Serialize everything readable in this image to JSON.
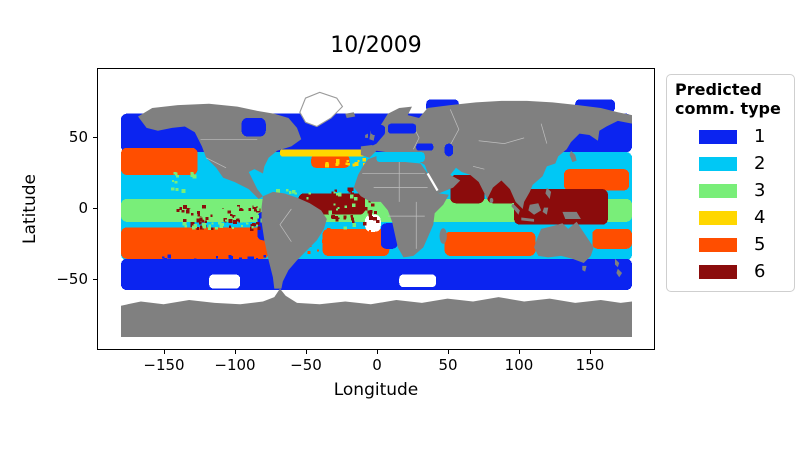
{
  "title": "10/2009",
  "axes": {
    "xlabel": "Longitude",
    "ylabel": "Latitude",
    "x_tick_labels": [
      "−150",
      "−100",
      "−50",
      "0",
      "50",
      "100",
      "150"
    ],
    "y_tick_labels": [
      "50",
      "0",
      "−50"
    ]
  },
  "legend": {
    "title_line1": "Predicted",
    "title_line2": "comm. type",
    "entries": [
      {
        "label": "1",
        "color": "#0b24f0"
      },
      {
        "label": "2",
        "color": "#00c8f5"
      },
      {
        "label": "3",
        "color": "#79ee79"
      },
      {
        "label": "4",
        "color": "#ffd700"
      },
      {
        "label": "5",
        "color": "#ff4e00"
      },
      {
        "label": "6",
        "color": "#8b0c0c"
      }
    ]
  },
  "map_colors": {
    "land": "#808080",
    "country_border": "#bfbfbf",
    "no_data": "#ffffff"
  },
  "chart_data": {
    "type": "heatmap",
    "title": "10/2009",
    "xlabel": "Longitude",
    "ylabel": "Latitude",
    "xlim": [
      -180,
      180
    ],
    "ylim": [
      -90,
      90
    ],
    "x_ticks": [
      -150,
      -100,
      -50,
      0,
      50,
      100,
      150
    ],
    "y_ticks": [
      50,
      0,
      -50
    ],
    "legend_title": "Predicted comm. type",
    "classes": [
      1,
      2,
      3,
      4,
      5,
      6
    ],
    "class_colors": {
      "1": "#0b24f0",
      "2": "#00c8f5",
      "3": "#79ee79",
      "4": "#ffd700",
      "5": "#ff4e00",
      "6": "#8b0c0c"
    },
    "zones": [
      {
        "class": 2,
        "lon": [
          -180,
          180
        ],
        "lat": [
          -36,
          40
        ]
      },
      {
        "class": 3,
        "lon": [
          -180,
          180
        ],
        "lat": [
          -9,
          7
        ]
      },
      {
        "class": 1,
        "lon": [
          -180,
          180
        ],
        "lat": [
          40,
          67
        ]
      },
      {
        "class": 1,
        "lon": [
          -180,
          180
        ],
        "lat": [
          -57,
          -35
        ]
      },
      {
        "class": 5,
        "lon": [
          -180,
          -126
        ],
        "lat": [
          24,
          43
        ]
      },
      {
        "class": 5,
        "lon": [
          132,
          178
        ],
        "lat": [
          13,
          28
        ]
      },
      {
        "class": 5,
        "lon": [
          -46,
          -19
        ],
        "lat": [
          29,
          38
        ]
      },
      {
        "class": 5,
        "lon": [
          -180,
          -76
        ],
        "lat": [
          -35,
          -13
        ]
      },
      {
        "class": 5,
        "lon": [
          -38,
          9
        ],
        "lat": [
          -33,
          -14
        ]
      },
      {
        "class": 5,
        "lon": [
          48,
          112
        ],
        "lat": [
          -33,
          -16
        ]
      },
      {
        "class": 5,
        "lon": [
          152,
          180
        ],
        "lat": [
          -28,
          -14
        ]
      },
      {
        "class": 4,
        "lon": [
          -68,
          -8
        ],
        "lat": [
          37,
          42
        ]
      },
      {
        "class": 6,
        "lon": [
          -55,
          -8
        ],
        "lat": [
          -4,
          11
        ]
      },
      {
        "class": 6,
        "lon": [
          52,
          76
        ],
        "lat": [
          4,
          24
        ]
      },
      {
        "class": 6,
        "lon": [
          78,
          99
        ],
        "lat": [
          4,
          21
        ]
      },
      {
        "class": 6,
        "lon": [
          97,
          163
        ],
        "lat": [
          -11,
          14
        ]
      },
      {
        "class": 1,
        "lon": [
          -180,
          -158
        ],
        "lat": [
          52,
          66
        ]
      },
      {
        "class": 1,
        "lon": [
          162,
          180
        ],
        "lat": [
          52,
          66
        ]
      },
      {
        "class": 1,
        "lon": [
          138,
          158
        ],
        "lat": [
          45,
          60
        ]
      },
      {
        "class": 1,
        "lon": [
          3,
          15
        ],
        "lat": [
          -28,
          -10
        ]
      },
      {
        "class": 1,
        "lon": [
          -84,
          -74
        ],
        "lat": [
          -22,
          -2
        ]
      },
      {
        "class": 1,
        "lon": [
          35,
          58
        ],
        "lat": [
          68,
          77
        ]
      },
      {
        "class": 1,
        "lon": [
          140,
          168
        ],
        "lat": [
          68,
          77
        ]
      },
      {
        "class": 1,
        "lon": [
          -60,
          -45
        ],
        "lat": [
          55,
          63
        ]
      },
      {
        "class": 0,
        "lon": [
          -118,
          -96
        ],
        "lat": [
          -56,
          -46
        ]
      },
      {
        "class": 0,
        "lon": [
          16,
          42
        ],
        "lat": [
          -55,
          -46
        ]
      },
      {
        "class": 0,
        "lon": [
          -8,
          3
        ],
        "lat": [
          -16,
          -4
        ]
      },
      {
        "class": 1,
        "lon": [
          -95,
          -78
        ],
        "lat": [
          51,
          64
        ],
        "over": true
      },
      {
        "class": 1,
        "lon": [
          8,
          28
        ],
        "lat": [
          53,
          60
        ],
        "over": true
      },
      {
        "class": 1,
        "lon": [
          -4,
          6
        ],
        "lat": [
          52,
          59
        ],
        "over": true
      },
      {
        "class": 1,
        "lon": [
          28,
          40
        ],
        "lat": [
          41,
          46
        ],
        "over": true
      },
      {
        "class": 1,
        "lon": [
          48,
          54
        ],
        "lat": [
          37,
          46
        ],
        "over": true
      },
      {
        "class": 2,
        "lon": [
          0,
          34
        ],
        "lat": [
          33,
          40
        ],
        "over": true
      }
    ],
    "speckles": [
      {
        "class": 6,
        "lon": [
          -178,
          -122
        ],
        "lat": [
          -8,
          14
        ],
        "n": 70
      },
      {
        "class": 6,
        "lon": [
          -122,
          -82
        ],
        "lat": [
          -6,
          8
        ],
        "n": 28
      },
      {
        "class": 6,
        "lon": [
          38,
          98
        ],
        "lat": [
          -13,
          3
        ],
        "n": 55
      },
      {
        "class": 6,
        "lon": [
          148,
          180
        ],
        "lat": [
          -10,
          16
        ],
        "n": 45
      },
      {
        "class": 6,
        "lon": [
          -60,
          -30
        ],
        "lat": [
          -2,
          10
        ],
        "n": 18
      },
      {
        "class": 3,
        "lon": [
          40,
          100
        ],
        "lat": [
          -13,
          5
        ],
        "n": 55
      },
      {
        "class": 3,
        "lon": [
          100,
          165
        ],
        "lat": [
          -13,
          15
        ],
        "n": 45
      },
      {
        "class": 3,
        "lon": [
          -178,
          -90
        ],
        "lat": [
          -10,
          -4
        ],
        "n": 40
      },
      {
        "class": 3,
        "lon": [
          -95,
          -60
        ],
        "lat": [
          8,
          22
        ],
        "n": 25
      },
      {
        "class": 1,
        "lon": [
          -175,
          -85
        ],
        "lat": [
          -40,
          -31
        ],
        "n": 45
      },
      {
        "class": 1,
        "lon": [
          5,
          115
        ],
        "lat": [
          -41,
          -32
        ],
        "n": 45
      },
      {
        "class": 5,
        "lon": [
          -176,
          -122
        ],
        "lat": [
          8,
          24
        ],
        "n": 55
      },
      {
        "class": 5,
        "lon": [
          -70,
          -32
        ],
        "lat": [
          16,
          30
        ],
        "n": 40
      },
      {
        "class": 5,
        "lon": [
          118,
          175
        ],
        "lat": [
          -30,
          -12
        ],
        "n": 40
      },
      {
        "class": 4,
        "lon": [
          138,
          176
        ],
        "lat": [
          32,
          36
        ],
        "n": 16
      },
      {
        "class": 4,
        "lon": [
          -22,
          -6
        ],
        "lat": [
          34,
          44
        ],
        "n": 6
      },
      {
        "class": 3,
        "lon": [
          33,
          43
        ],
        "lat": [
          13,
          27
        ],
        "n": 8,
        "over": true
      },
      {
        "class": 3,
        "lon": [
          48,
          54
        ],
        "lat": [
          24,
          28
        ],
        "n": 3,
        "over": true
      }
    ]
  }
}
